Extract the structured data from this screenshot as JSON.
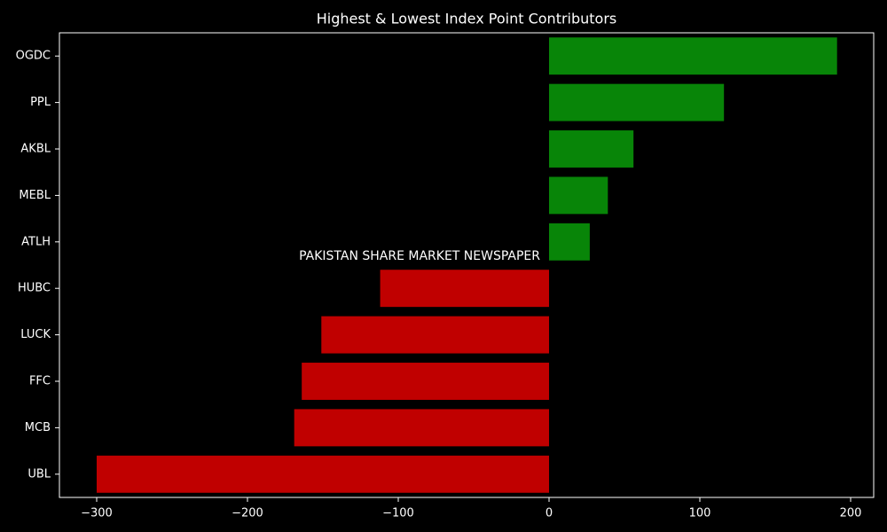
{
  "chart_data": {
    "type": "barh",
    "title": "Highest & Lowest Index Point Contributors",
    "annotation": "PAKISTAN SHARE MARKET NEWSPAPER",
    "categories": [
      "OGDC",
      "PPL",
      "AKBL",
      "MEBL",
      "ATLH",
      "HUBC",
      "LUCK",
      "FFC",
      "MCB",
      "UBL"
    ],
    "values": [
      191,
      116,
      56,
      39,
      27,
      -112,
      -151,
      -164,
      -169,
      -300
    ],
    "colors": [
      "#088508",
      "#088508",
      "#088508",
      "#088508",
      "#088508",
      "#c00000",
      "#c00000",
      "#c00000",
      "#c00000",
      "#c00000"
    ],
    "xlim": [
      -324.7,
      215.3
    ],
    "xticks": [
      {
        "value": -300,
        "label": "−300"
      },
      {
        "value": -200,
        "label": "−200"
      },
      {
        "value": -100,
        "label": "−100"
      },
      0,
      100,
      200
    ],
    "grid": false
  }
}
